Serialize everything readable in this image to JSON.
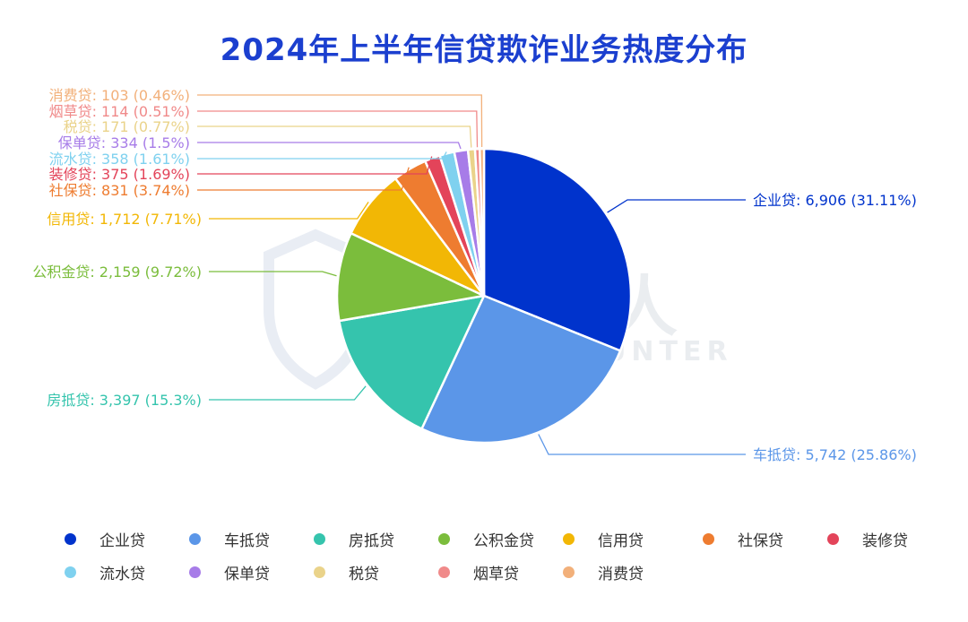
{
  "chart_data": {
    "type": "pie",
    "title": "2024年上半年信贷欺诈业务热度分布",
    "slices": [
      {
        "name": "企业贷",
        "value": 6906,
        "value_text": "6,906",
        "percent": "31.11%",
        "color": "#0033cc"
      },
      {
        "name": "车抵贷",
        "value": 5742,
        "value_text": "5,742",
        "percent": "25.86%",
        "color": "#5b96e8"
      },
      {
        "name": "房抵贷",
        "value": 3397,
        "value_text": "3,397",
        "percent": "15.3%",
        "color": "#35c4ad"
      },
      {
        "name": "公积金贷",
        "value": 2159,
        "value_text": "2,159",
        "percent": "9.72%",
        "color": "#7bbd3c"
      },
      {
        "name": "信用贷",
        "value": 1712,
        "value_text": "1,712",
        "percent": "7.71%",
        "color": "#f2b705"
      },
      {
        "name": "社保贷",
        "value": 831,
        "value_text": "831",
        "percent": "3.74%",
        "color": "#ee7c30"
      },
      {
        "name": "装修贷",
        "value": 375,
        "value_text": "375",
        "percent": "1.69%",
        "color": "#e3445a"
      },
      {
        "name": "流水贷",
        "value": 358,
        "value_text": "358",
        "percent": "1.61%",
        "color": "#7fd1ef"
      },
      {
        "name": "保单贷",
        "value": 334,
        "value_text": "334",
        "percent": "1.5%",
        "color": "#a77ce8"
      },
      {
        "name": "税贷",
        "value": 171,
        "value_text": "171",
        "percent": "0.77%",
        "color": "#ead38a"
      },
      {
        "name": "烟草贷",
        "value": 114,
        "value_text": "114",
        "percent": "0.51%",
        "color": "#f08a8a"
      },
      {
        "name": "消费贷",
        "value": 103,
        "value_text": "103",
        "percent": "0.46%",
        "color": "#f2b07a"
      }
    ],
    "legend": {
      "position": "bottom"
    }
  },
  "watermark": {
    "text_cn": "威胁猎人",
    "text_en": "THREAT HUNTER"
  }
}
